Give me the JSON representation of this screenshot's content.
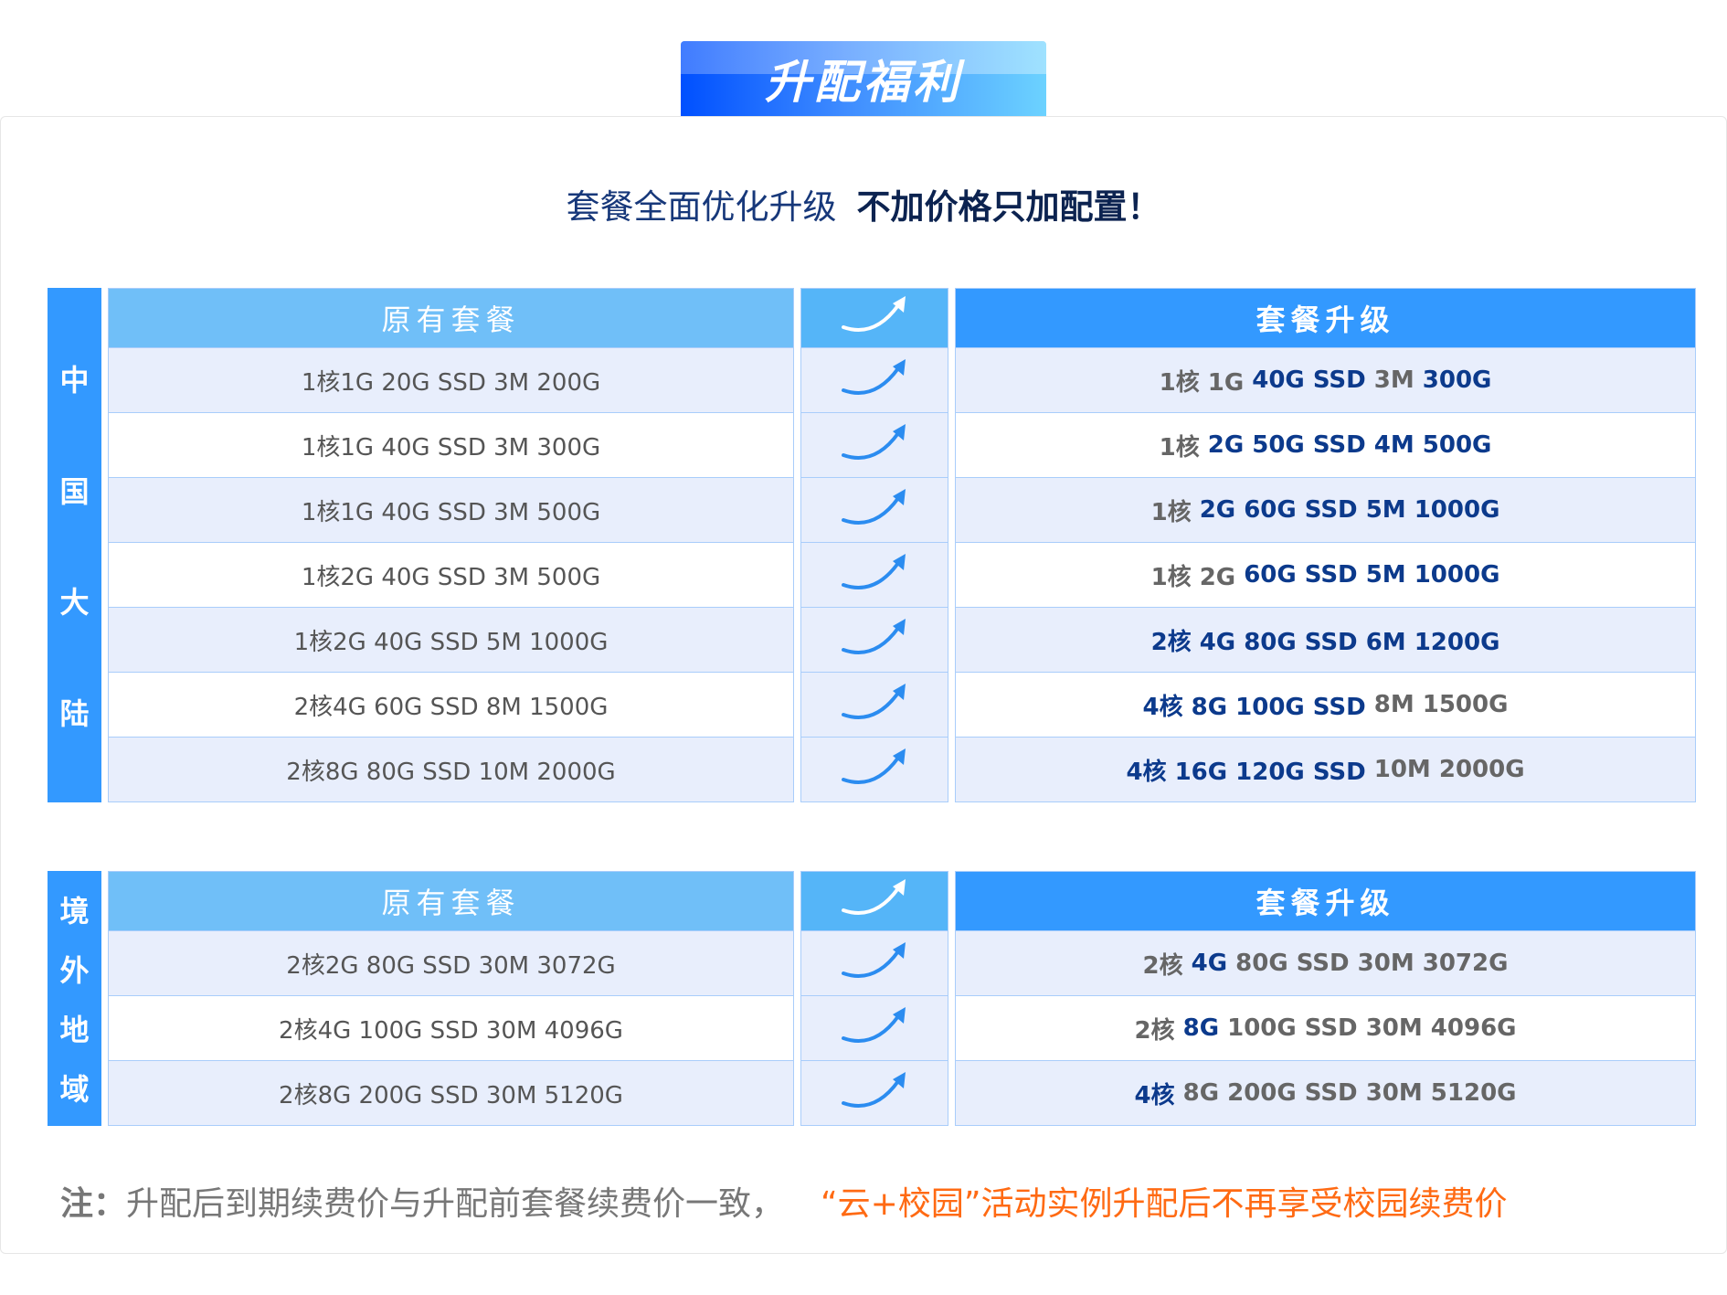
{
  "banner": {
    "title": "升配福利"
  },
  "subtitle": {
    "normal": "套餐全面优化升级",
    "bold": "不加价格只加配置！"
  },
  "colors": {
    "header_blue": "#3399ff",
    "header_light": "#70bff8",
    "row_alt": "#e8eefc",
    "highlight": "#0c3a8c",
    "note_orange": "#ff6a13"
  },
  "tables": [
    {
      "region": [
        "中",
        "国",
        "大",
        "陆"
      ],
      "header_left": "原有套餐",
      "header_right": "套餐升级",
      "arrow_icon": "upgrade-arrow-icon",
      "rows": [
        {
          "old": "1核1G 20G SSD 3M 200G",
          "new": [
            {
              "t": "1核 1G ",
              "hl": false
            },
            {
              "t": "40G SSD ",
              "hl": true
            },
            {
              "t": "3M ",
              "hl": false
            },
            {
              "t": "300G",
              "hl": true
            }
          ]
        },
        {
          "old": "1核1G 40G SSD 3M 300G",
          "new": [
            {
              "t": "1核 ",
              "hl": false
            },
            {
              "t": "2G 50G SSD 4M 500G",
              "hl": true
            }
          ]
        },
        {
          "old": "1核1G 40G SSD 3M 500G",
          "new": [
            {
              "t": "1核 ",
              "hl": false
            },
            {
              "t": "2G 60G SSD 5M 1000G",
              "hl": true
            }
          ]
        },
        {
          "old": "1核2G 40G SSD 3M 500G",
          "new": [
            {
              "t": "1核 2G ",
              "hl": false
            },
            {
              "t": "60G SSD 5M 1000G",
              "hl": true
            }
          ]
        },
        {
          "old": "1核2G 40G SSD 5M 1000G",
          "new": [
            {
              "t": "2核 4G 80G SSD 6M 1200G",
              "hl": true
            }
          ]
        },
        {
          "old": "2核4G 60G SSD 8M 1500G",
          "new": [
            {
              "t": "4核 8G 100G SSD ",
              "hl": true
            },
            {
              "t": "8M 1500G",
              "hl": false
            }
          ]
        },
        {
          "old": "2核8G 80G SSD 10M 2000G",
          "new": [
            {
              "t": "4核 16G 120G SSD ",
              "hl": true
            },
            {
              "t": "10M 2000G",
              "hl": false
            }
          ]
        }
      ]
    },
    {
      "region": [
        "境",
        "外",
        "地",
        "域"
      ],
      "header_left": "原有套餐",
      "header_right": "套餐升级",
      "arrow_icon": "upgrade-arrow-icon",
      "rows": [
        {
          "old": "2核2G 80G SSD 30M 3072G",
          "new": [
            {
              "t": "2核 ",
              "hl": false
            },
            {
              "t": "4G ",
              "hl": true
            },
            {
              "t": "80G SSD 30M 3072G",
              "hl": false
            }
          ]
        },
        {
          "old": "2核4G 100G SSD 30M 4096G",
          "new": [
            {
              "t": "2核 ",
              "hl": false
            },
            {
              "t": "8G ",
              "hl": true
            },
            {
              "t": "100G SSD 30M 4096G",
              "hl": false
            }
          ]
        },
        {
          "old": "2核8G 200G SSD 30M 5120G",
          "new": [
            {
              "t": "4核 ",
              "hl": true
            },
            {
              "t": "8G 200G SSD 30M 5120G",
              "hl": false
            }
          ]
        }
      ]
    }
  ],
  "note": {
    "label": "注：",
    "text": "升配后到期续费价与升配前套餐续费价一致，",
    "highlight": "“云+校园”活动实例升配后不再享受校园续费价"
  }
}
